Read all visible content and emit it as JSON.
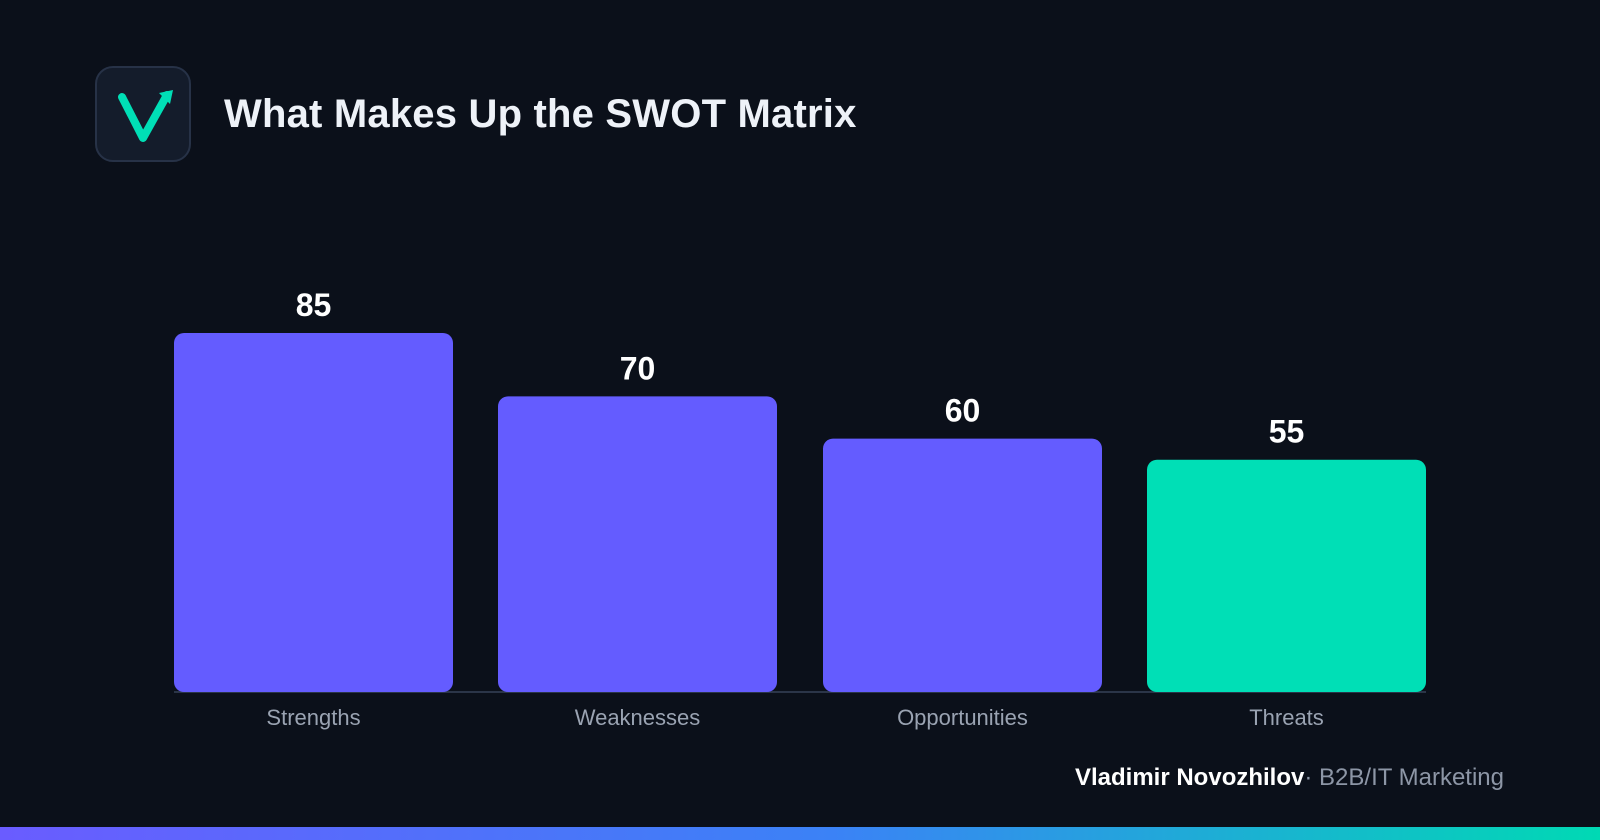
{
  "header": {
    "title": "What Makes Up the SWOT Matrix",
    "logo_icon": "checkmark-arrow-logo-icon"
  },
  "chart_data": {
    "type": "bar",
    "categories": [
      "Strengths",
      "Weaknesses",
      "Opportunities",
      "Threats"
    ],
    "values": [
      85,
      70,
      60,
      55
    ],
    "title": "What Makes Up the SWOT Matrix",
    "xlabel": "",
    "ylabel": "",
    "ylim": [
      0,
      85
    ],
    "grid": false,
    "legend": "none",
    "colors": [
      "#645cff",
      "#645cff",
      "#645cff",
      "#00dfb6"
    ]
  },
  "footer": {
    "author": "Vladimir Novozhilov",
    "separator": "·",
    "role": "B2B/IT Marketing"
  },
  "colors": {
    "background": "#0b101a",
    "bar_primary": "#645cff",
    "bar_accent": "#00dfb6",
    "gradient_start": "#6a5cff",
    "gradient_end": "#00d9b4"
  }
}
